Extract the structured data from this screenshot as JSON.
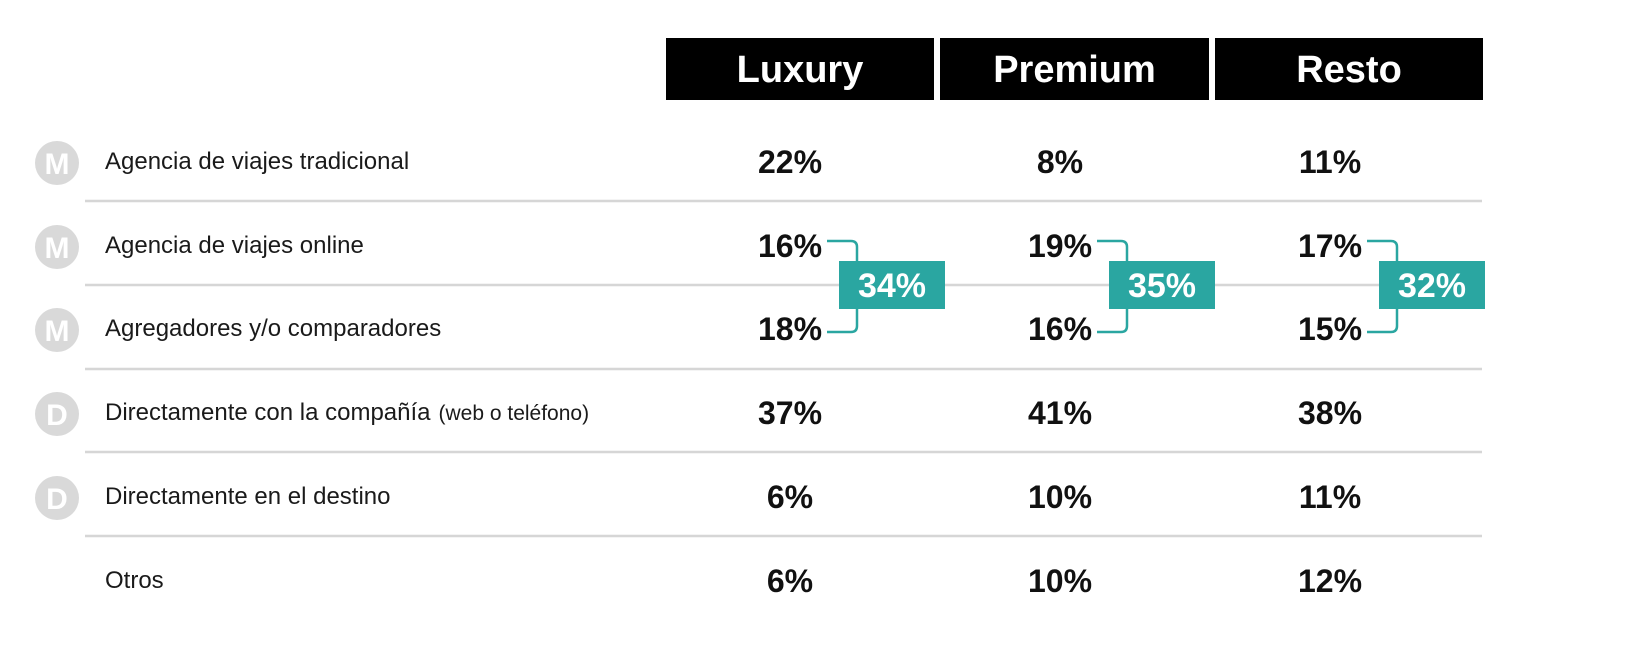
{
  "chart_data": {
    "type": "table",
    "columns": [
      "Luxury",
      "Premium",
      "Resto"
    ],
    "rows": [
      {
        "icon": "M",
        "icon_name": "m-circle-icon",
        "label": "Agencia de viajes tradicional",
        "note": "",
        "values": [
          "22%",
          "8%",
          "11%"
        ]
      },
      {
        "icon": "M",
        "icon_name": "m-circle-icon",
        "label": "Agencia de viajes online",
        "note": "",
        "values": [
          "16%",
          "19%",
          "17%"
        ]
      },
      {
        "icon": "M",
        "icon_name": "m-circle-icon",
        "label": "Agregadores y/o comparadores",
        "note": "",
        "values": [
          "18%",
          "16%",
          "15%"
        ]
      },
      {
        "icon": "D",
        "icon_name": "d-circle-icon",
        "label": "Directamente con la compañía",
        "note": "(web o teléfono)",
        "values": [
          "37%",
          "41%",
          "38%"
        ]
      },
      {
        "icon": "D",
        "icon_name": "d-circle-icon",
        "label": "Directamente en el destino",
        "note": "",
        "values": [
          "6%",
          "10%",
          "11%"
        ]
      },
      {
        "icon": "",
        "icon_name": "",
        "label": "Otros",
        "note": "",
        "values": [
          "6%",
          "10%",
          "12%"
        ]
      }
    ],
    "grouped_totals": {
      "rows": [
        "Agencia de viajes online",
        "Agregadores y/o comparadores"
      ],
      "values": [
        "34%",
        "35%",
        "32%"
      ]
    }
  },
  "colors": {
    "header_bg": "#000000",
    "header_text": "#ffffff",
    "accent": "#2aa6a1",
    "icon_bg": "#d9d9d9",
    "divider": "#d6d6d6",
    "text": "#111111"
  }
}
